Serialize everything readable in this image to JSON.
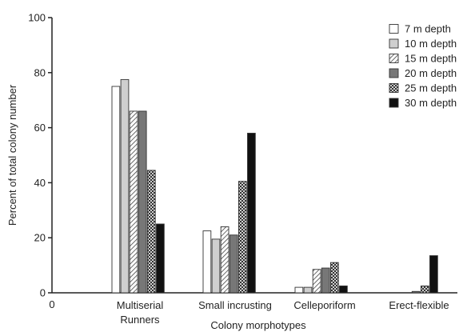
{
  "chart_data": {
    "type": "bar",
    "title": "",
    "xlabel": "Colony morphotypes",
    "ylabel": "Percent of total colony number",
    "ylim": [
      0,
      100
    ],
    "yticks": [
      "0",
      "20",
      "40",
      "60",
      "80",
      "100"
    ],
    "x_origin_label": "0",
    "categories": [
      [
        "Multiserial",
        "Runners"
      ],
      [
        "Small incrusting"
      ],
      [
        "Celleporiform"
      ],
      [
        "Erect-flexible"
      ]
    ],
    "legend_position": "top-right",
    "grid": false,
    "series": [
      {
        "name": "7 m depth",
        "pattern": "white",
        "values": [
          75,
          22.5,
          2,
          0
        ]
      },
      {
        "name": "10 m depth",
        "pattern": "lightgray",
        "values": [
          77.5,
          19.5,
          2,
          0
        ]
      },
      {
        "name": "15 m depth",
        "pattern": "hatch",
        "values": [
          66,
          24,
          8.5,
          0
        ]
      },
      {
        "name": "20 m depth",
        "pattern": "gray",
        "values": [
          66,
          21,
          9,
          0.5
        ]
      },
      {
        "name": "25 m depth",
        "pattern": "checker",
        "values": [
          44.5,
          40.5,
          11,
          2.5
        ]
      },
      {
        "name": "30 m depth",
        "pattern": "black",
        "values": [
          25,
          58,
          2.5,
          13.5
        ]
      }
    ]
  }
}
